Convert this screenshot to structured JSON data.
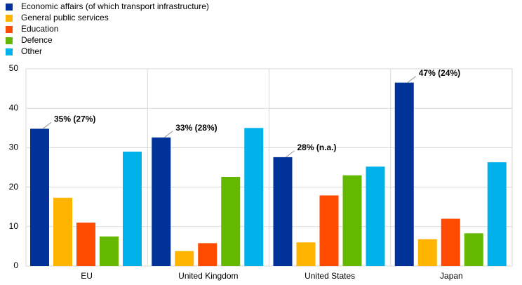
{
  "chart_data": {
    "type": "bar",
    "categories": [
      "EU",
      "United Kingdom",
      "United States",
      "Japan"
    ],
    "series": [
      {
        "name": "Economic affairs (of which transport infrastructure)",
        "color": "#003299",
        "values": [
          34.8,
          32.6,
          27.6,
          46.5
        ]
      },
      {
        "name": "General public services",
        "color": "#ffb400",
        "values": [
          17.3,
          3.8,
          6.0,
          6.8
        ]
      },
      {
        "name": "Education",
        "color": "#ff4b00",
        "values": [
          11.0,
          5.8,
          17.9,
          12.0
        ]
      },
      {
        "name": "Defence",
        "color": "#65b800",
        "values": [
          7.5,
          22.6,
          23.0,
          8.3
        ]
      },
      {
        "name": "Other",
        "color": "#00b1ea",
        "values": [
          29.0,
          35.0,
          25.2,
          26.3
        ]
      }
    ],
    "annotations": [
      "35% (27%)",
      "33% (28%)",
      "28% (n.a.)",
      "47% (24%)"
    ],
    "ylim": [
      0,
      50
    ],
    "yticks": [
      0,
      10,
      20,
      30,
      40,
      50
    ],
    "grid": true,
    "legend": "top-left"
  }
}
